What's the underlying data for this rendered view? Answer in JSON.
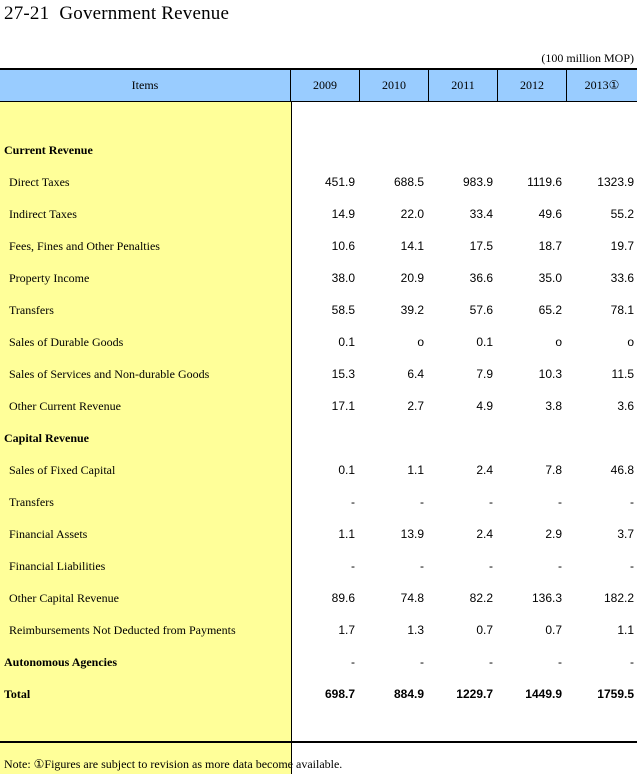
{
  "header": {
    "number": "27-21",
    "title": "Government Revenue",
    "unit": "(100 million MOP)"
  },
  "table": {
    "columns": [
      "Items",
      "2009",
      "2010",
      "2011",
      "2012",
      "2013①"
    ],
    "rows": [
      {
        "label": "Current Revenue",
        "section": true,
        "values": [
          "",
          "",
          "",
          "",
          ""
        ]
      },
      {
        "label": "Direct Taxes",
        "values": [
          "451.9",
          "688.5",
          "983.9",
          "1119.6",
          "1323.9"
        ]
      },
      {
        "label": "Indirect Taxes",
        "values": [
          "14.9",
          "22.0",
          "33.4",
          "49.6",
          "55.2"
        ]
      },
      {
        "label": "Fees, Fines and Other Penalties",
        "values": [
          "10.6",
          "14.1",
          "17.5",
          "18.7",
          "19.7"
        ]
      },
      {
        "label": "Property Income",
        "values": [
          "38.0",
          "20.9",
          "36.6",
          "35.0",
          "33.6"
        ]
      },
      {
        "label": "Transfers",
        "values": [
          "58.5",
          "39.2",
          "57.6",
          "65.2",
          "78.1"
        ]
      },
      {
        "label": "Sales of Durable Goods",
        "values": [
          "0.1",
          "o",
          "0.1",
          "o",
          "o"
        ]
      },
      {
        "label": "Sales of Services and Non-durable Goods",
        "values": [
          "15.3",
          "6.4",
          "7.9",
          "10.3",
          "11.5"
        ]
      },
      {
        "label": "Other Current Revenue",
        "values": [
          "17.1",
          "2.7",
          "4.9",
          "3.8",
          "3.6"
        ]
      },
      {
        "label": "Capital Revenue",
        "section": true,
        "values": [
          "",
          "",
          "",
          "",
          ""
        ]
      },
      {
        "label": "Sales of Fixed Capital",
        "values": [
          "0.1",
          "1.1",
          "2.4",
          "7.8",
          "46.8"
        ]
      },
      {
        "label": "Transfers",
        "values": [
          "-",
          "-",
          "-",
          "-",
          "-"
        ]
      },
      {
        "label": "Financial Assets",
        "values": [
          "1.1",
          "13.9",
          "2.4",
          "2.9",
          "3.7"
        ]
      },
      {
        "label": "Financial Liabilities",
        "values": [
          "-",
          "-",
          "-",
          "-",
          "-"
        ]
      },
      {
        "label": "Other Capital Revenue",
        "values": [
          "89.6",
          "74.8",
          "82.2",
          "136.3",
          "182.2"
        ]
      },
      {
        "label": "Reimbursements Not Deducted from Payments",
        "values": [
          "1.7",
          "1.3",
          "0.7",
          "0.7",
          "1.1"
        ]
      },
      {
        "label": "Autonomous Agencies",
        "section": true,
        "values": [
          "-",
          "-",
          "-",
          "-",
          "-"
        ]
      },
      {
        "label": "Total",
        "section": true,
        "total": true,
        "values": [
          "698.7",
          "884.9",
          "1229.7",
          "1449.9",
          "1759.5"
        ]
      }
    ]
  },
  "note": "Note: ①Figures are subject to revision as more data become available."
}
